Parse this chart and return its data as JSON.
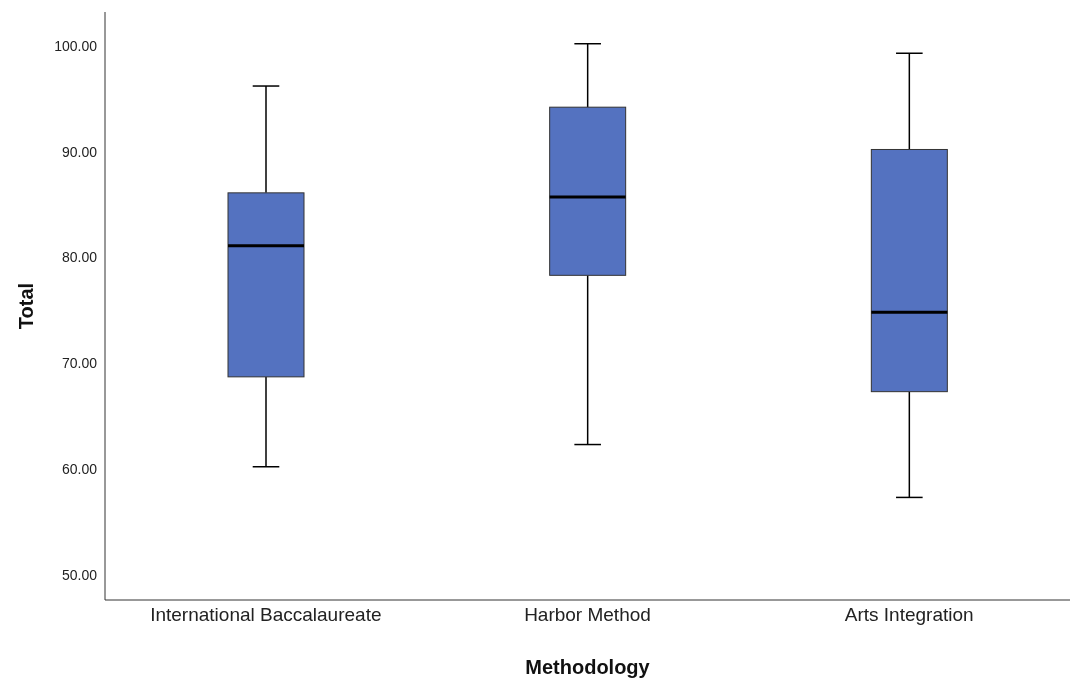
{
  "chart_data": {
    "type": "box",
    "xlabel": "Methodology",
    "ylabel": "Total",
    "categories": [
      "International Baccalaureate",
      "Harbor Method",
      "Arts Integration"
    ],
    "boxes": [
      {
        "low": 60.2,
        "q1": 68.7,
        "median": 81.1,
        "q3": 86.1,
        "high": 96.2
      },
      {
        "low": 62.3,
        "q1": 78.3,
        "median": 85.7,
        "q3": 94.2,
        "high": 100.2
      },
      {
        "low": 57.3,
        "q1": 67.3,
        "median": 74.8,
        "q3": 90.2,
        "high": 99.3
      }
    ],
    "color": "#5472c0",
    "ylim": [
      47.6,
      103.2
    ],
    "yticks": [
      {
        "value": 50,
        "label": "50.00"
      },
      {
        "value": 60,
        "label": "60.00"
      },
      {
        "value": 70,
        "label": "70.00"
      },
      {
        "value": 80,
        "label": "80.00"
      },
      {
        "value": 90,
        "label": "90.00"
      },
      {
        "value": 100,
        "label": "100.00"
      }
    ],
    "grid": false
  }
}
